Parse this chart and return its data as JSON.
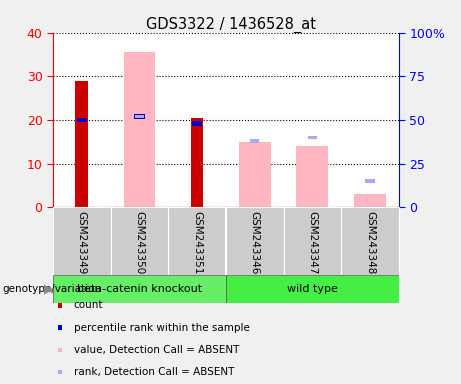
{
  "title": "GDS3322 / 1436528_at",
  "samples": [
    "GSM243349",
    "GSM243350",
    "GSM243351",
    "GSM243346",
    "GSM243347",
    "GSM243348"
  ],
  "count_values": [
    29,
    0,
    20.5,
    0,
    0,
    0
  ],
  "percentile_rank_scaled": [
    50,
    52,
    48,
    0,
    0,
    0
  ],
  "absent_value": [
    0,
    35.5,
    0,
    15,
    14,
    3
  ],
  "absent_rank_pct": [
    0,
    52,
    0,
    38,
    40,
    15
  ],
  "groups": [
    {
      "label": "beta-catenin knockout",
      "indices": [
        0,
        1,
        2
      ],
      "color": "#66EE66"
    },
    {
      "label": "wild type",
      "indices": [
        3,
        4,
        5
      ],
      "color": "#44EE44"
    }
  ],
  "color_count": "#CC0000",
  "color_percentile": "#0000CC",
  "color_absent_value": "#FFB6C1",
  "color_absent_rank": "#AAAAEE",
  "background_color": "#F0F0F0",
  "plot_bg": "#FFFFFF"
}
